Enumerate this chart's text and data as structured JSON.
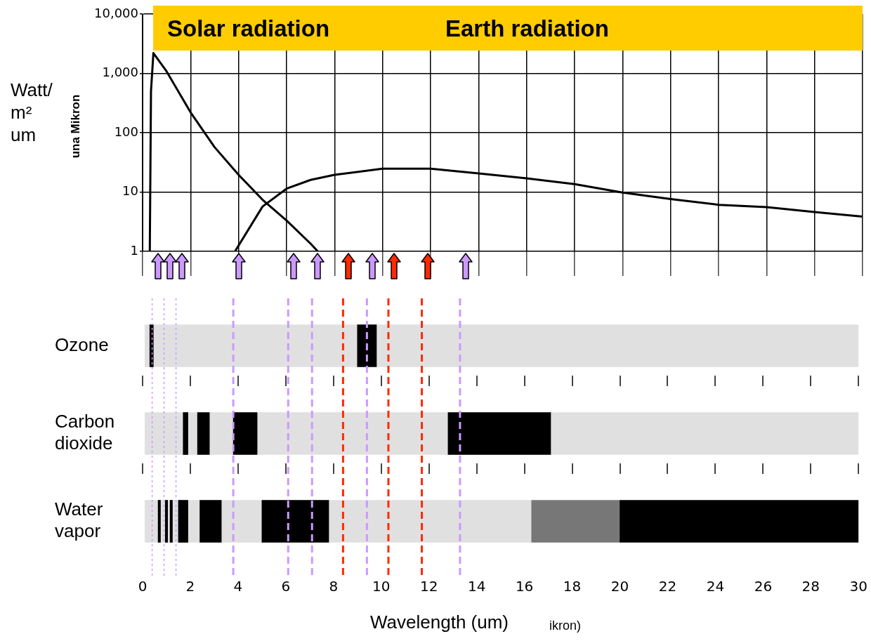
{
  "chart_data": [
    {
      "type": "line",
      "ylabel": "Watt/ m² um",
      "annotations": [
        "Solar radiation",
        "Earth radiation",
        "una Mikron"
      ],
      "xlim": [
        0,
        30
      ],
      "xticks": [
        0,
        2,
        4,
        6,
        8,
        10,
        12,
        14,
        16,
        18,
        20,
        22,
        24,
        26,
        28,
        30
      ],
      "ylim": [
        1,
        10000
      ],
      "yticks": [
        1,
        10,
        100,
        {
          "value": 1000,
          "label": "1,000"
        },
        {
          "value": 10000,
          "label": "10,000"
        }
      ],
      "log": "y",
      "grid": true,
      "tick_labels": "y",
      "marker": "none",
      "line_style": "solid",
      "series": [
        {
          "color": "#000000",
          "x": [
            0.3,
            0.35,
            0.45,
            1,
            2,
            3,
            4,
            5,
            6,
            7,
            7.3
          ],
          "values": [
            1,
            500,
            2200,
            1080,
            220,
            57,
            19.5,
            7.4,
            3.3,
            1.35,
            1
          ]
        },
        {
          "color": "#000000",
          "x": [
            3.85,
            5,
            6,
            7,
            8,
            10,
            12,
            14,
            16,
            18,
            20,
            22,
            24,
            26,
            28,
            30
          ],
          "values": [
            1,
            5.7,
            11.4,
            16,
            19.5,
            24.7,
            24.7,
            20.6,
            17,
            13.6,
            9.8,
            7.6,
            6.1,
            5.55,
            4.6,
            3.84
          ]
        }
      ]
    },
    {
      "type": "bar",
      "orientation": "horizontal",
      "categories": [
        "Ozone",
        "Carbon dioxide",
        "Water vapor"
      ],
      "xlabel": "Wavelength (um)",
      "annotations": [
        "ikron)"
      ],
      "xlim": [
        0,
        30
      ],
      "xticks": [
        0,
        2,
        4,
        6,
        8,
        10,
        12,
        14,
        16,
        18,
        20,
        22,
        24,
        26,
        28,
        30
      ],
      "series": [
        {
          "color": "#e0e0e0",
          "base": [
            0.1,
            0.1,
            0.1
          ],
          "values": [
            29.9,
            29.9,
            16.2
          ]
        },
        {
          "color": "#000000",
          "base": [
            0.3,
            1.7,
            0.65
          ],
          "values": [
            0.15,
            0.2,
            0.1
          ]
        },
        {
          "color": "#000000",
          "base": [
            9,
            2.3,
            0.95
          ],
          "values": [
            0.8,
            0.5,
            0.1
          ]
        },
        {
          "color": "#000000",
          "base": [
            null,
            3.8,
            1.15
          ],
          "values": [
            null,
            1,
            0.1
          ]
        },
        {
          "color": "#000000",
          "base": [
            null,
            12.8,
            1.5
          ],
          "values": [
            null,
            4.3,
            0.4
          ]
        },
        {
          "color": "#000000",
          "base": [
            null,
            null,
            2.4
          ],
          "values": [
            null,
            null,
            0.9
          ]
        },
        {
          "color": "#000000",
          "base": [
            null,
            null,
            5
          ],
          "values": [
            null,
            null,
            2.8
          ]
        },
        {
          "color": "#777777",
          "base": [
            null,
            null,
            16.3
          ],
          "values": [
            null,
            null,
            3.7
          ]
        },
        {
          "color": "#000000",
          "base": [
            null,
            null,
            20
          ],
          "values": [
            null,
            null,
            10
          ]
        }
      ],
      "ref_lines": [
        {
          "axis": "x",
          "value": 0.4,
          "color": "#cc99ff",
          "line_style": "dotted"
        },
        {
          "axis": "x",
          "value": 0.9,
          "color": "#cc99ff",
          "line_style": "dotted"
        },
        {
          "axis": "x",
          "value": 1.4,
          "color": "#cc99ff",
          "line_style": "dotted"
        },
        {
          "axis": "x",
          "value": 3.8,
          "color": "#cc99ff",
          "line_style": "dashed"
        },
        {
          "axis": "x",
          "value": 6.1,
          "color": "#cc99ff",
          "line_style": "dashed"
        },
        {
          "axis": "x",
          "value": 7.1,
          "color": "#cc99ff",
          "line_style": "dashed"
        },
        {
          "axis": "x",
          "value": 8.4,
          "color": "#ff2a00",
          "line_style": "dashed"
        },
        {
          "axis": "x",
          "value": 9.4,
          "color": "#cc99ff",
          "line_style": "dashed"
        },
        {
          "axis": "x",
          "value": 10.3,
          "color": "#ff2a00",
          "line_style": "dashed"
        },
        {
          "axis": "x",
          "value": 11.7,
          "color": "#ff2a00",
          "line_style": "dashed"
        },
        {
          "axis": "x",
          "value": 13.3,
          "color": "#cc99ff",
          "line_style": "dashed"
        }
      ]
    }
  ]
}
